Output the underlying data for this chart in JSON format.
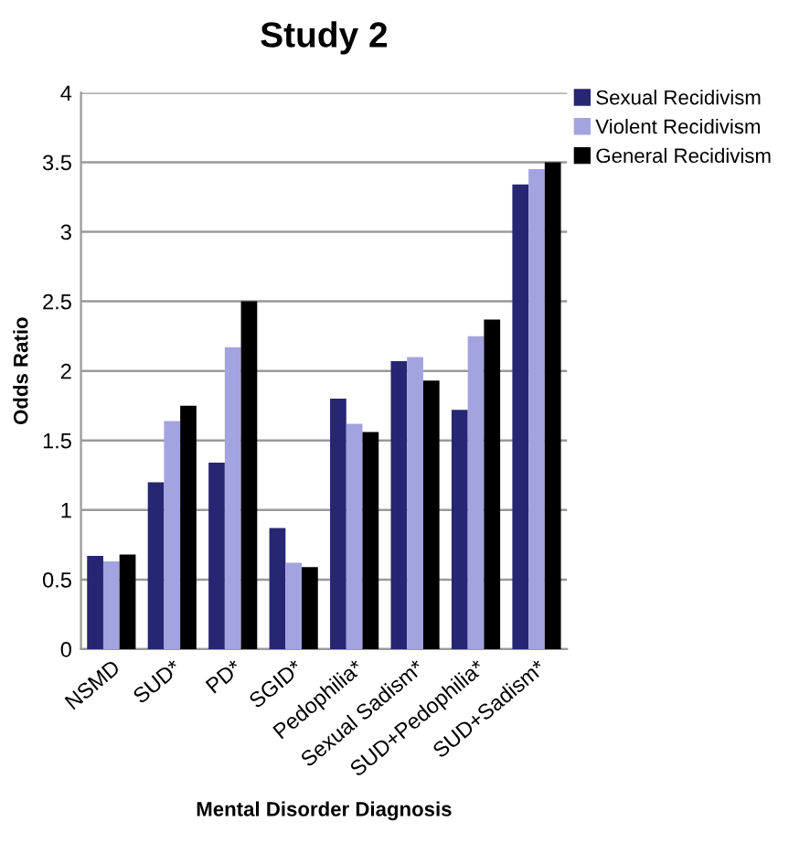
{
  "chart_data": {
    "type": "bar",
    "title": "Study 2",
    "xlabel": "Mental Disorder Diagnosis",
    "ylabel": "Odds Ratio",
    "categories": [
      "NSMD",
      "SUD*",
      "PD*",
      "SGID*",
      "Pedophilia*",
      "Sexual Sadism*",
      "SUD+Pedophilia*",
      "SUD+Sadism*"
    ],
    "series": [
      {
        "name": "Sexual Recidivism",
        "color": "#262673",
        "values": [
          0.67,
          1.2,
          1.34,
          0.87,
          1.8,
          2.07,
          1.72,
          3.34
        ]
      },
      {
        "name": "Violent Recidivism",
        "color": "#a3a3e0",
        "values": [
          0.63,
          1.64,
          2.17,
          0.62,
          1.62,
          2.1,
          2.25,
          3.45
        ]
      },
      {
        "name": "General Recidivism",
        "color": "#000000",
        "values": [
          0.68,
          1.75,
          2.5,
          0.59,
          1.56,
          1.93,
          2.37,
          3.5
        ]
      }
    ],
    "ylim": [
      0,
      4
    ],
    "yticks": [
      0,
      0.5,
      1,
      1.5,
      2,
      2.5,
      3,
      3.5,
      4
    ],
    "grid": "y",
    "legend": "top right"
  }
}
